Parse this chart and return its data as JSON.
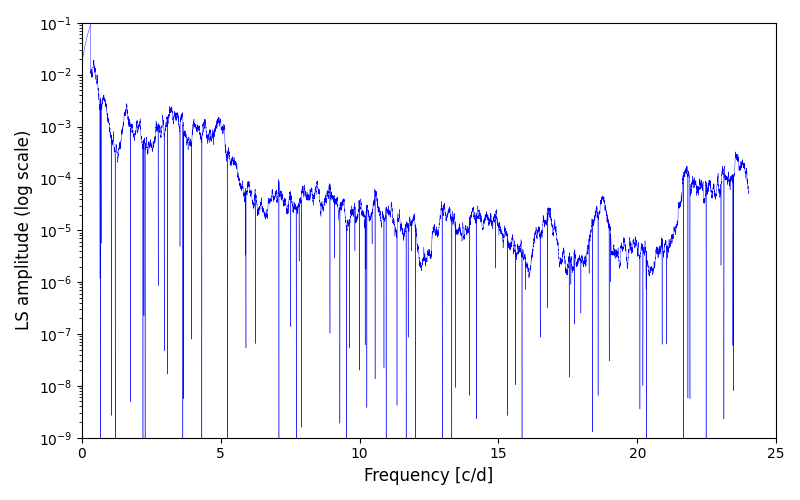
{
  "title": "",
  "xlabel": "Frequency [c/d]",
  "ylabel": "LS amplitude (log scale)",
  "line_color": "#0000ff",
  "xlim": [
    0,
    25
  ],
  "ylim": [
    1e-09,
    0.1
  ],
  "freq_max": 24.0,
  "n_points": 15000,
  "seed": 123,
  "background_color": "#ffffff",
  "figsize": [
    8.0,
    5.0
  ],
  "dpi": 100
}
